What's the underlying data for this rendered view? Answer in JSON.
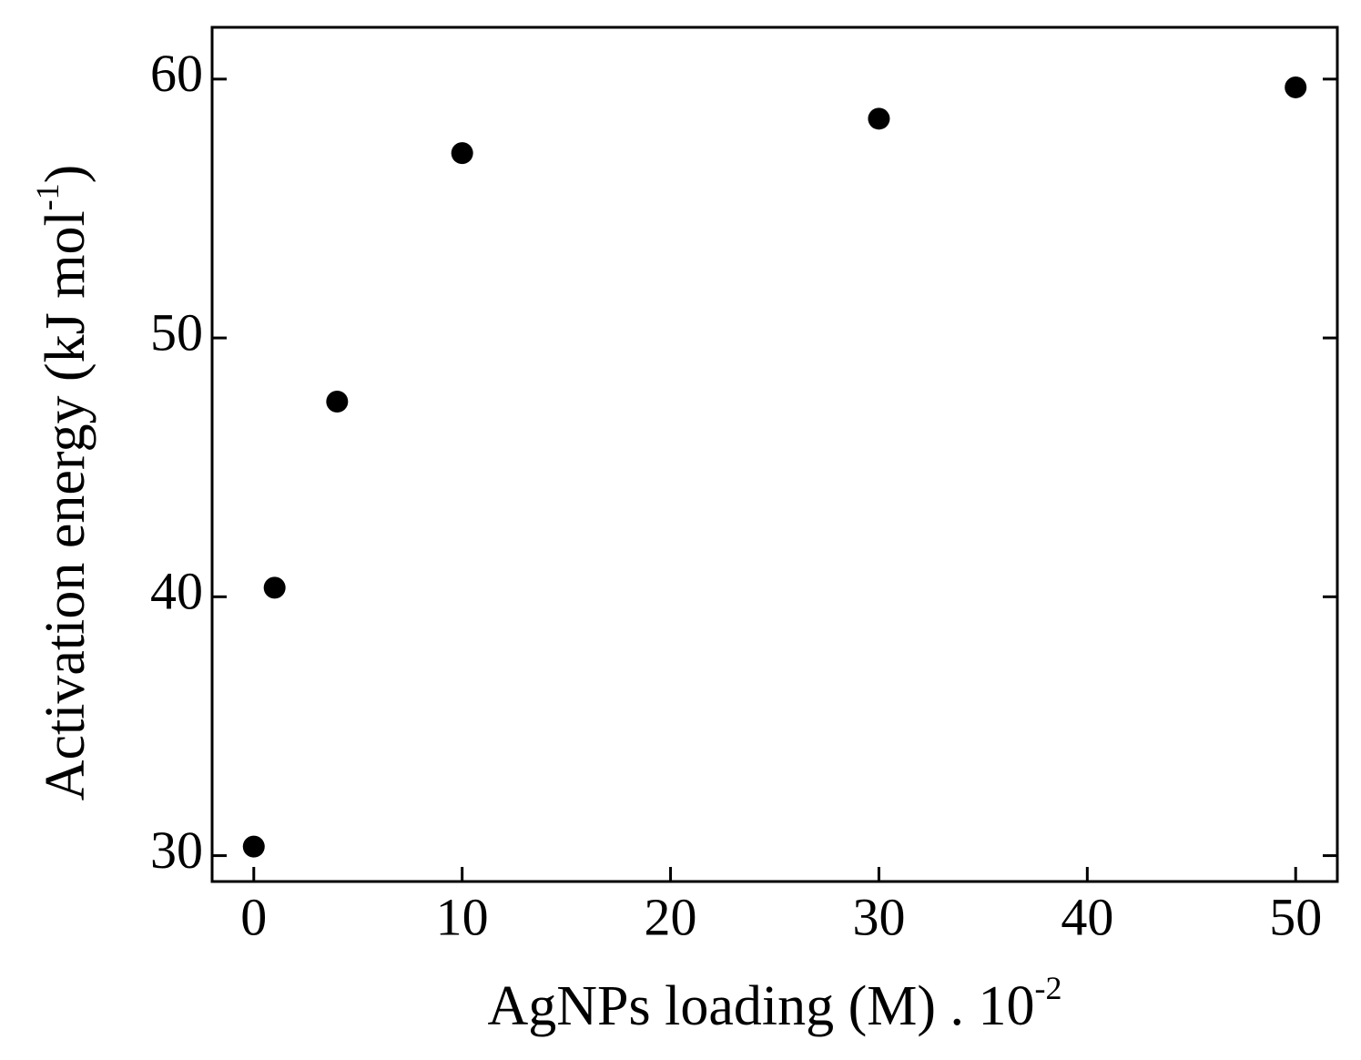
{
  "chart_data": {
    "type": "scatter",
    "x_label": {
      "text": "AgNPs loading (M) . 10",
      "superscript": "-2"
    },
    "y_label": {
      "text": "Activation energy (kJ mol",
      "superscript": "-1",
      "suffix": ")"
    },
    "x": [
      0,
      1,
      4,
      10,
      30,
      50
    ],
    "values": [
      30.35,
      40.35,
      47.54,
      57.14,
      58.47,
      59.68
    ],
    "color": "#000000",
    "xlim": [
      -2,
      52
    ],
    "xticks": [
      0,
      10,
      20,
      30,
      40,
      50
    ],
    "ylim": [
      29,
      62
    ],
    "yticks": [
      30,
      40,
      50,
      60
    ]
  }
}
